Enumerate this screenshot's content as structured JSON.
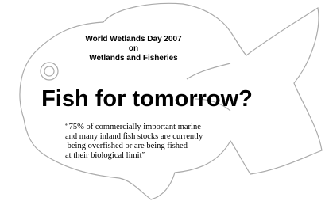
{
  "header": {
    "lines": [
      "World Wetlands Day 2007",
      "on",
      "Wetlands and Fisheries"
    ]
  },
  "title": "Fish for tomorrow?",
  "quote": {
    "lines": [
      "“75% of commercially important marine",
      "and many inland fish stocks are currently",
      " being overfished or are being fished",
      "at their biological limit”"
    ]
  }
}
